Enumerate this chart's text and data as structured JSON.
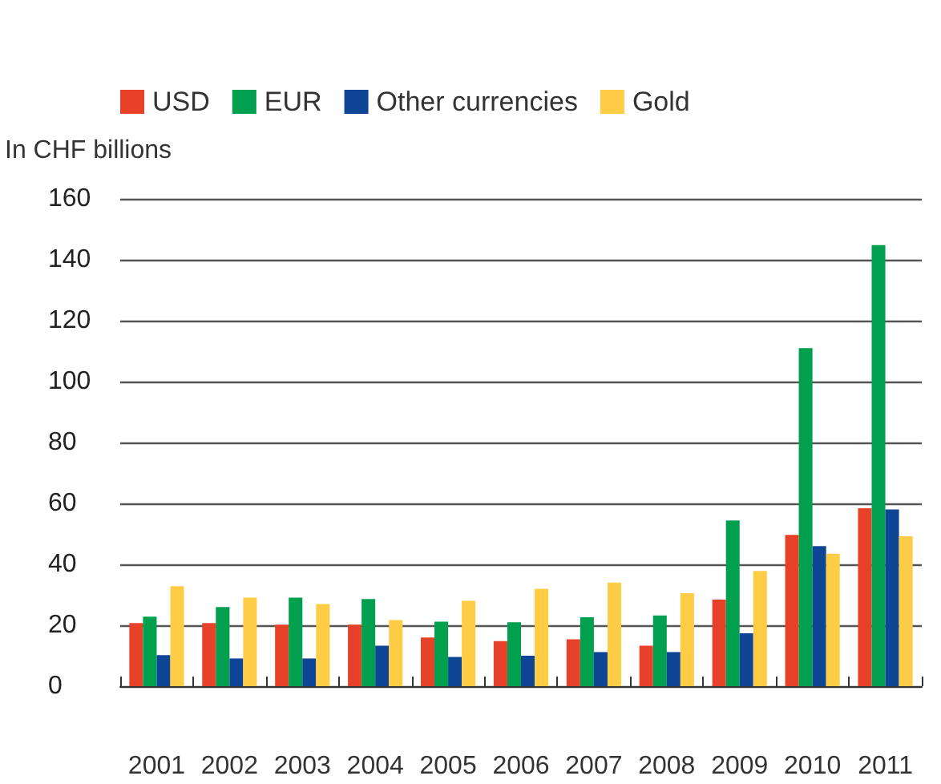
{
  "chart_data": {
    "type": "bar",
    "ylabel": "In CHF billions",
    "categories": [
      "2001",
      "2002",
      "2003",
      "2004",
      "2005",
      "2006",
      "2007",
      "2008",
      "2009",
      "2010",
      "2011"
    ],
    "series": [
      {
        "name": "USD",
        "color": "#e8412a",
        "values": [
          20.7,
          20.7,
          20.2,
          20.2,
          16,
          14.8,
          15.4,
          13.3,
          28.4,
          49.7,
          58.4
        ]
      },
      {
        "name": "EUR",
        "color": "#00a04f",
        "values": [
          22.8,
          26,
          29.1,
          28.6,
          21.2,
          21,
          22.6,
          23.2,
          54.4,
          111,
          144.8
        ]
      },
      {
        "name": "Other currencies",
        "color": "#0f4595",
        "values": [
          10.2,
          9.1,
          9.1,
          13.3,
          9.6,
          10,
          11.2,
          11.2,
          17.4,
          46,
          58
        ]
      },
      {
        "name": "Gold",
        "color": "#fecd45",
        "values": [
          32.8,
          29.1,
          27,
          21.7,
          28,
          32,
          34,
          30.5,
          37.8,
          43.5,
          49.2
        ]
      }
    ],
    "ylim": [
      0,
      160
    ],
    "yticks": [
      0,
      20,
      40,
      60,
      80,
      100,
      120,
      140,
      160
    ],
    "grid": "y",
    "legend": "top left"
  }
}
